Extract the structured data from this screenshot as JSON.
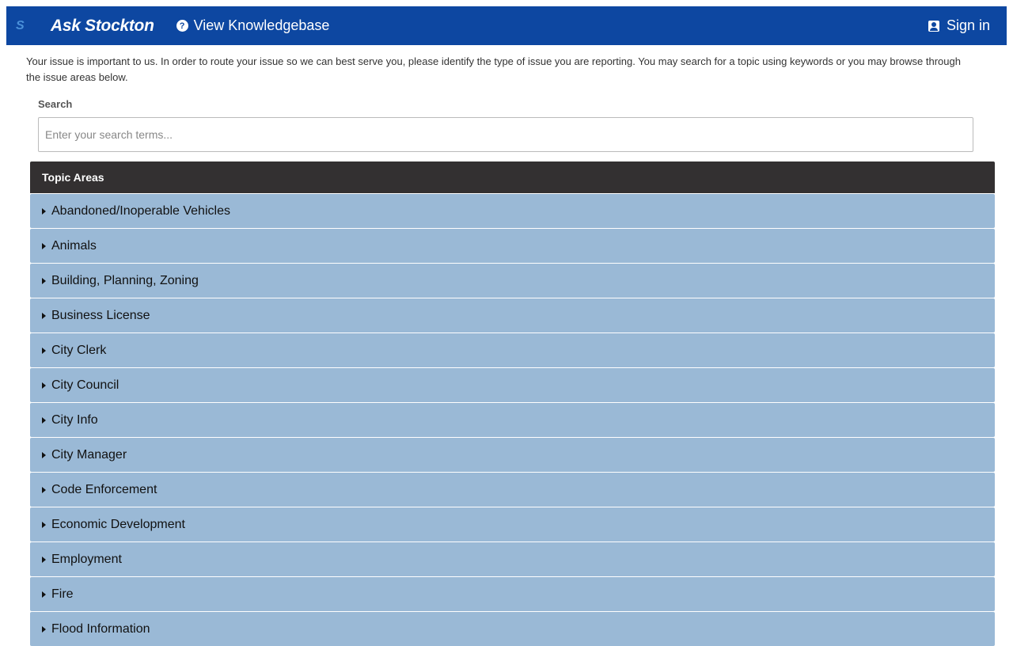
{
  "header": {
    "logo": "S",
    "brand": "Ask Stockton",
    "knowledgebase": "View Knowledgebase",
    "sign_in": "Sign in"
  },
  "intro": "Your issue is important to us. In order to route your issue so we can best serve you, please identify the type of issue you are reporting. You may search for a topic using keywords or you may browse through the issue areas below.",
  "search": {
    "label": "Search",
    "placeholder": "Enter your search terms..."
  },
  "topics": {
    "title": "Topic Areas",
    "items": [
      "Abandoned/Inoperable Vehicles",
      "Animals",
      "Building, Planning, Zoning",
      "Business License",
      "City Clerk",
      "City Council",
      "City Info",
      "City Manager",
      "Code Enforcement",
      "Economic Development",
      "Employment",
      "Fire",
      "Flood Information"
    ]
  }
}
